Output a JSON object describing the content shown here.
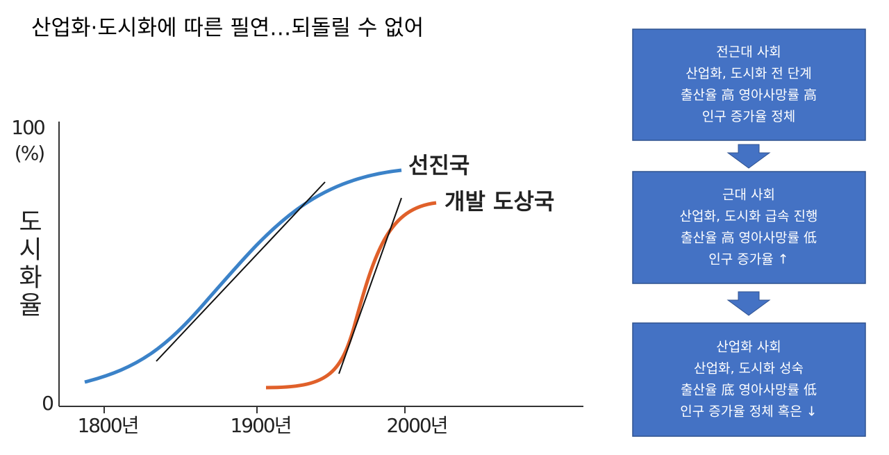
{
  "title": "산업화·도시화에 따른 필연…되돌릴 수 없어",
  "chart": {
    "y_top_label": "100",
    "y_unit": "(%)",
    "y_bottom_label": "0",
    "y_axis_label": "도시화율",
    "x_labels": [
      "1800년",
      "1900년",
      "2000년"
    ],
    "series_labels": [
      "선진국",
      "개발 도상국"
    ]
  },
  "boxes": [
    {
      "lines": [
        "전근대 사회",
        "산업화, 도시화 전 단계",
        "출산율 高 영아사망률 高",
        "인구 증가율 정체"
      ]
    },
    {
      "lines": [
        "근대 사회",
        "산업화, 도시화 급속 진행",
        "출산율 高 영아사망률 低",
        "인구 증가율 ↑"
      ]
    },
    {
      "lines": [
        "산업화 사회",
        "산업화, 도시화 성숙",
        "출산율 底 영아사망률 低",
        "인구 증가율 정체 혹은 ↓"
      ]
    }
  ]
}
